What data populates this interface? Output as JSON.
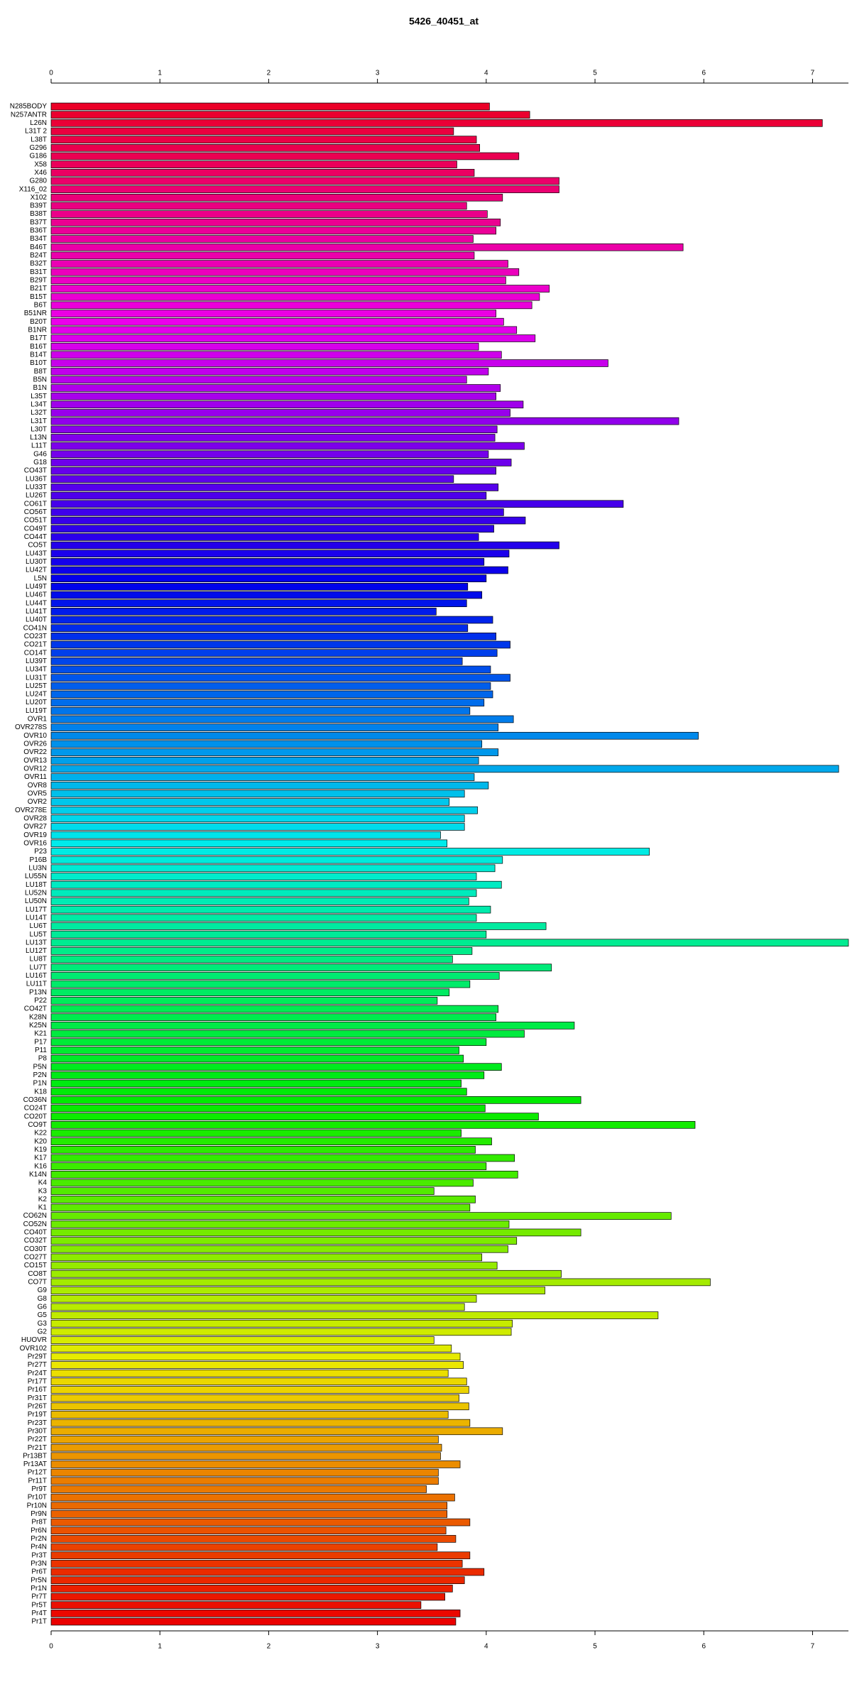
{
  "chart_data": {
    "type": "barh",
    "title": "5426_40451_at",
    "categories": [
      "N285BODY",
      "N257ANTR",
      "L26N",
      "L31T 2",
      "L38T",
      "G296",
      "G186",
      "X58",
      "X46",
      "G280",
      "X116_02",
      "X102",
      "B39T",
      "B38T",
      "B37T",
      "B36T",
      "B34T",
      "B46T",
      "B24T",
      "B32T",
      "B31T",
      "B29T",
      "B21T",
      "B15T",
      "B6T",
      "B51NR",
      "B20T",
      "B1NR",
      "B17T",
      "B16T",
      "B14T",
      "B10T",
      "B8T",
      "B5N",
      "B1N",
      "L35T",
      "L34T",
      "L32T",
      "L31T",
      "L30T",
      "L13N",
      "L11T",
      "G46",
      "G18",
      "CO43T",
      "LU36T",
      "LU33T",
      "LU26T",
      "CO61T",
      "CO56T",
      "CO51T",
      "CO49T",
      "CO44T",
      "CO5T",
      "LU43T",
      "LU30T",
      "LU42T",
      "L5N",
      "LU49T",
      "LU46T",
      "LU44T",
      "LU41T",
      "LU40T",
      "CO41N",
      "CO23T",
      "CO21T",
      "CO14T",
      "LU39T",
      "LU34T",
      "LU31T",
      "LU25T",
      "LU24T",
      "LU20T",
      "LU19T",
      "OVR1",
      "OVR278S",
      "OVR10",
      "OVR26",
      "OVR22",
      "OVR13",
      "OVR12",
      "OVR11",
      "OVR8",
      "OVR5",
      "OVR2",
      "OVR278E",
      "OVR28",
      "OVR27",
      "OVR19",
      "OVR16",
      "P23",
      "P16B",
      "LU3N",
      "LU55N",
      "LU18T",
      "LU52N",
      "LU50N",
      "LU17T",
      "LU14T",
      "LU6T",
      "LU5T",
      "LU13T",
      "LU12T",
      "LU8T",
      "LU7T",
      "LU16T",
      "LU11T",
      "P13N",
      "P22",
      "CO42T",
      "K28N",
      "K25N",
      "K21",
      "P17",
      "P11",
      "P8",
      "P5N",
      "P2N",
      "P1N",
      "K18",
      "CO36N",
      "CO24T",
      "CO20T",
      "CO9T",
      "K22",
      "K20",
      "K19",
      "K17",
      "K16",
      "K14N",
      "K4",
      "K3",
      "K2",
      "K1",
      "CO62N",
      "CO52N",
      "CO40T",
      "CO32T",
      "CO30T",
      "CO27T",
      "CO15T",
      "CO8T",
      "CO7T",
      "G9",
      "G8",
      "G6",
      "G5",
      "G3",
      "G2",
      "HUOVR",
      "OVR102",
      "Pr29T",
      "Pr27T",
      "Pr24T",
      "Pr17T",
      "Pr16T",
      "Pr31T",
      "Pr26T",
      "Pr19T",
      "Pr23T",
      "Pr30T",
      "Pr22T",
      "Pr21T",
      "Pr13BT",
      "Pr13AT",
      "Pr12T",
      "Pr11T",
      "Pr9T",
      "Pr10T",
      "Pr10N",
      "Pr9N",
      "Pr8T",
      "Pr6N",
      "Pr2N",
      "Pr4N",
      "Pr3T",
      "Pr3N",
      "Pr6T",
      "Pr5N",
      "Pr1N",
      "Pr7T",
      "Pr5T",
      "Pr4T",
      "Pr1T"
    ],
    "values": [
      4.03,
      4.4,
      7.09,
      3.7,
      3.91,
      3.94,
      4.3,
      3.73,
      3.89,
      4.67,
      4.67,
      4.15,
      3.82,
      4.01,
      4.13,
      4.09,
      3.88,
      5.81,
      3.89,
      4.2,
      4.3,
      4.18,
      4.58,
      4.49,
      4.42,
      4.09,
      4.16,
      4.28,
      4.45,
      3.93,
      4.14,
      5.12,
      4.02,
      3.82,
      4.13,
      4.09,
      4.34,
      4.22,
      5.77,
      4.1,
      4.08,
      4.35,
      4.02,
      4.23,
      4.09,
      3.7,
      4.11,
      4.0,
      5.26,
      4.16,
      4.36,
      4.07,
      3.93,
      4.67,
      4.21,
      3.98,
      4.2,
      4.0,
      3.83,
      3.96,
      3.82,
      3.54,
      4.06,
      3.83,
      4.09,
      4.22,
      4.1,
      3.78,
      4.04,
      4.22,
      4.04,
      4.06,
      3.98,
      3.85,
      4.25,
      4.11,
      5.95,
      3.96,
      4.11,
      3.93,
      7.24,
      3.89,
      4.02,
      3.8,
      3.66,
      3.92,
      3.8,
      3.8,
      3.58,
      3.64,
      5.5,
      4.15,
      4.08,
      3.91,
      4.14,
      3.91,
      3.84,
      4.04,
      3.91,
      4.55,
      4.0,
      7.33,
      3.87,
      3.69,
      4.6,
      4.12,
      3.85,
      3.66,
      3.55,
      4.11,
      4.09,
      4.81,
      4.35,
      4.0,
      3.75,
      3.79,
      4.14,
      3.98,
      3.77,
      3.82,
      4.87,
      3.99,
      4.48,
      5.92,
      3.77,
      4.05,
      3.9,
      4.26,
      4.0,
      4.29,
      3.88,
      3.52,
      3.9,
      3.85,
      5.7,
      4.21,
      4.87,
      4.28,
      4.2,
      3.96,
      4.1,
      4.69,
      6.06,
      4.54,
      3.91,
      3.8,
      5.58,
      4.24,
      4.23,
      3.52,
      3.68,
      3.76,
      3.79,
      3.65,
      3.82,
      3.84,
      3.75,
      3.84,
      3.65,
      3.85,
      4.15,
      3.56,
      3.59,
      3.58,
      3.76,
      3.56,
      3.56,
      3.45,
      3.71,
      3.64,
      3.64,
      3.85,
      3.63,
      3.72,
      3.55,
      3.85,
      3.78,
      3.98,
      3.8,
      3.69,
      3.62,
      3.4,
      3.76,
      3.72
    ],
    "colors": [
      "hsl(350,100%,46%)",
      "hsl(348,100%,46%)",
      "hsl(346,100%,46%)",
      "hsl(344,100%,46%)",
      "hsl(342,100%,46%)",
      "hsl(340,100%,46%)",
      "hsl(339,100%,46%)",
      "hsl(337,100%,46%)",
      "hsl(335,100%,46%)",
      "hsl(333,100%,46%)",
      "hsl(331,100%,46%)",
      "hsl(329,100%,46%)",
      "hsl(327,100%,46%)",
      "hsl(325,100%,46%)",
      "hsl(323,100%,46%)",
      "hsl(321,100%,46%)",
      "hsl(319,100%,46%)",
      "hsl(317,100%,46%)",
      "hsl(316,100%,46%)",
      "hsl(314,100%,46%)",
      "hsl(312,100%,46%)",
      "hsl(310,100%,46%)",
      "hsl(308,100%,46%)",
      "hsl(306,100%,46%)",
      "hsl(304,100%,46%)",
      "hsl(302,100%,46%)",
      "hsl(300,100%,46%)",
      "hsl(298,100%,46%)",
      "hsl(296,100%,46%)",
      "hsl(295,100%,46%)",
      "hsl(293,100%,46%)",
      "hsl(291,100%,46%)",
      "hsl(289,100%,46%)",
      "hsl(287,100%,46%)",
      "hsl(285,100%,46%)",
      "hsl(283,100%,46%)",
      "hsl(281,100%,46%)",
      "hsl(279,100%,46%)",
      "hsl(277,100%,46%)",
      "hsl(275,100%,46%)",
      "hsl(273,100%,46%)",
      "hsl(272,100%,46%)",
      "hsl(270,100%,46%)",
      "hsl(268,100%,46%)",
      "hsl(266,100%,46%)",
      "hsl(264,100%,46%)",
      "hsl(262,100%,46%)",
      "hsl(260,100%,46%)",
      "hsl(258,100%,46%)",
      "hsl(256,100%,46%)",
      "hsl(254,100%,46%)",
      "hsl(252,100%,46%)",
      "hsl(251,100%,46%)",
      "hsl(249,100%,46%)",
      "hsl(247,100%,46%)",
      "hsl(245,100%,46%)",
      "hsl(243,100%,46%)",
      "hsl(241,100%,46%)",
      "hsl(239,100%,46%)",
      "hsl(237,100%,46%)",
      "hsl(235,100%,46%)",
      "hsl(233,100%,46%)",
      "hsl(231,100%,46%)",
      "hsl(229,100%,46%)",
      "hsl(228,100%,46%)",
      "hsl(226,100%,46%)",
      "hsl(224,100%,46%)",
      "hsl(222,100%,46%)",
      "hsl(220,100%,46%)",
      "hsl(218,100%,46%)",
      "hsl(216,100%,46%)",
      "hsl(214,100%,46%)",
      "hsl(212,100%,46%)",
      "hsl(210,100%,46%)",
      "hsl(208,100%,46%)",
      "hsl(207,100%,46%)",
      "hsl(205,100%,46%)",
      "hsl(203,100%,46%)",
      "hsl(201,100%,46%)",
      "hsl(199,100%,46%)",
      "hsl(197,100%,46%)",
      "hsl(195,100%,46%)",
      "hsl(193,100%,46%)",
      "hsl(191,100%,46%)",
      "hsl(189,100%,46%)",
      "hsl(187,100%,46%)",
      "hsl(185,100%,46%)",
      "hsl(184,100%,46%)",
      "hsl(182,100%,46%)",
      "hsl(180,100%,46%)",
      "hsl(178,100%,46%)",
      "hsl(176,100%,46%)",
      "hsl(174,100%,46%)",
      "hsl(172,100%,46%)",
      "hsl(170,100%,46%)",
      "hsl(168,100%,46%)",
      "hsl(166,100%,46%)",
      "hsl(164,100%,46%)",
      "hsl(162,100%,46%)",
      "hsl(161,100%,46%)",
      "hsl(159,100%,46%)",
      "hsl(157,100%,46%)",
      "hsl(155,100%,46%)",
      "hsl(153,100%,46%)",
      "hsl(151,100%,46%)",
      "hsl(149,100%,46%)",
      "hsl(147,100%,46%)",
      "hsl(145,100%,46%)",
      "hsl(143,100%,46%)",
      "hsl(141,100%,46%)",
      "hsl(140,100%,46%)",
      "hsl(138,100%,46%)",
      "hsl(136,100%,46%)",
      "hsl(134,100%,46%)",
      "hsl(132,100%,46%)",
      "hsl(130,100%,46%)",
      "hsl(128,100%,46%)",
      "hsl(126,100%,46%)",
      "hsl(124,100%,46%)",
      "hsl(122,100%,46%)",
      "hsl(120,100%,46%)",
      "hsl(118,100%,46%)",
      "hsl(117,100%,46%)",
      "hsl(115,100%,46%)",
      "hsl(113,100%,46%)",
      "hsl(111,100%,46%)",
      "hsl(109,100%,46%)",
      "hsl(107,100%,46%)",
      "hsl(105,100%,46%)",
      "hsl(103,100%,46%)",
      "hsl(101,100%,46%)",
      "hsl(99,100%,46%)",
      "hsl(97,100%,46%)",
      "hsl(96,100%,46%)",
      "hsl(94,100%,46%)",
      "hsl(92,100%,46%)",
      "hsl(90,100%,46%)",
      "hsl(88,100%,46%)",
      "hsl(86,100%,46%)",
      "hsl(84,100%,46%)",
      "hsl(82,100%,46%)",
      "hsl(80,100%,46%)",
      "hsl(78,100%,46%)",
      "hsl(76,100%,46%)",
      "hsl(74,100%,46%)",
      "hsl(73,100%,46%)",
      "hsl(71,100%,46%)",
      "hsl(69,100%,46%)",
      "hsl(67,100%,46%)",
      "hsl(65,100%,46%)",
      "hsl(63,100%,46%)",
      "hsl(61,100%,46%)",
      "hsl(59,100%,46%)",
      "hsl(57,100%,46%)",
      "hsl(55,100%,46%)",
      "hsl(54,100%,46%)",
      "hsl(52,100%,46%)",
      "hsl(50,100%,46%)",
      "hsl(48,100%,46%)",
      "hsl(46,100%,46%)",
      "hsl(44,100%,46%)",
      "hsl(42,100%,46%)",
      "hsl(40,100%,46%)",
      "hsl(38,100%,46%)",
      "hsl(36,100%,46%)",
      "hsl(34,100%,46%)",
      "hsl(32,100%,46%)",
      "hsl(31,100%,46%)",
      "hsl(29,100%,46%)",
      "hsl(27,100%,46%)",
      "hsl(25,100%,46%)",
      "hsl(23,100%,46%)",
      "hsl(21,100%,46%)",
      "hsl(19,100%,46%)",
      "hsl(17,100%,46%)",
      "hsl(15,100%,46%)",
      "hsl(13,100%,46%)",
      "hsl(11,100%,46%)",
      "hsl(10,100%,46%)",
      "hsl(8,100%,46%)",
      "hsl(6,100%,46%)",
      "hsl(4,100%,46%)",
      "hsl(2,100%,46%)",
      "hsl(0,100%,46%)"
    ],
    "xlim": [
      0,
      7.33
    ],
    "xticks": [
      0,
      1,
      2,
      3,
      4,
      5,
      6,
      7
    ],
    "grid": false
  }
}
